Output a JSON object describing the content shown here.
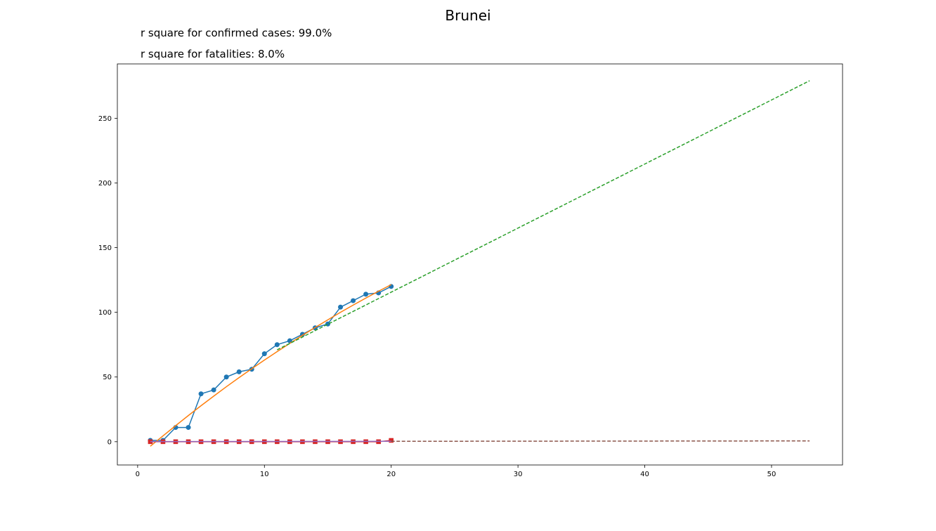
{
  "chart_data": {
    "type": "line",
    "title": "Brunei",
    "subtitles": [
      "r square for confirmed cases: 99.0%",
      "r square for fatalities: 8.0%"
    ],
    "xlim": [
      -1.6,
      55.6
    ],
    "ylim": [
      -18,
      292
    ],
    "x_ticks": [
      0,
      10,
      20,
      30,
      40,
      50
    ],
    "y_ticks": [
      0,
      50,
      100,
      150,
      200,
      250
    ],
    "grid": false,
    "series": [
      {
        "kind": "observed-confirmed",
        "color": "#1f77b4",
        "marker": "circle",
        "x": [
          1,
          2,
          3,
          4,
          5,
          6,
          7,
          8,
          9,
          10,
          11,
          12,
          13,
          14,
          15,
          16,
          17,
          18,
          19,
          20
        ],
        "y": [
          1,
          1,
          11,
          11,
          37,
          40,
          50,
          54,
          56,
          68,
          75,
          78,
          83,
          88,
          91,
          104,
          109,
          114,
          115,
          120
        ]
      },
      {
        "kind": "fit-confirmed",
        "color": "#ff7f0e",
        "style": "solid",
        "x": [
          1,
          2,
          3,
          4,
          5,
          6,
          7,
          8,
          9,
          10,
          11,
          12,
          13,
          14,
          15,
          16,
          17,
          18,
          19,
          20
        ],
        "y": [
          -3.5,
          4.5,
          12.4,
          20.2,
          27.8,
          35.2,
          42.5,
          49.5,
          56.4,
          63.1,
          69.6,
          76.0,
          82.2,
          88.3,
          94.2,
          100.0,
          105.6,
          111.0,
          116.3,
          121.4
        ]
      },
      {
        "kind": "forecast-confirmed",
        "color": "#2ca02c",
        "style": "dashed",
        "x": [
          11,
          53
        ],
        "y": [
          71,
          279
        ]
      },
      {
        "kind": "observed-fatalities",
        "color": "#d62728",
        "marker": "square",
        "x": [
          1,
          2,
          3,
          4,
          5,
          6,
          7,
          8,
          9,
          10,
          11,
          12,
          13,
          14,
          15,
          16,
          17,
          18,
          19,
          20
        ],
        "y": [
          0,
          0,
          0,
          0,
          0,
          0,
          0,
          0,
          0,
          0,
          0,
          0,
          0,
          0,
          0,
          0,
          0,
          0,
          0,
          1
        ]
      },
      {
        "kind": "fit-fatalities",
        "color": "#9467bd",
        "style": "solid",
        "x": [
          1,
          20
        ],
        "y": [
          0.1,
          0.3
        ]
      },
      {
        "kind": "forecast-fatalities",
        "color": "#8c564b",
        "style": "dashed",
        "x": [
          20,
          53
        ],
        "y": [
          0.3,
          0.6
        ]
      }
    ]
  }
}
